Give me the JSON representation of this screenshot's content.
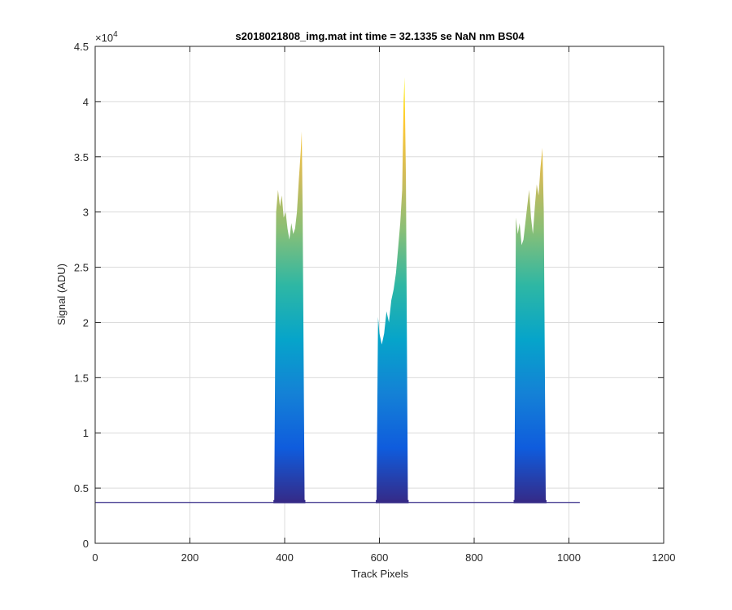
{
  "chart_data": {
    "type": "area",
    "title": "s2018021808_img.mat int time = 32.1335 se  NaN nm BS04",
    "xlabel": "Track Pixels",
    "ylabel": "Signal (ADU)",
    "y_exponent_base": "×10",
    "y_exponent_power": "4",
    "xlim": [
      0,
      1200
    ],
    "ylim": [
      0,
      4.5
    ],
    "y_scale_factor": 10000,
    "x_ticks": [
      0,
      200,
      400,
      600,
      800,
      1000,
      1200
    ],
    "x_tick_labels": [
      "0",
      "200",
      "400",
      "600",
      "800",
      "1000",
      "1200"
    ],
    "y_ticks": [
      0,
      0.5,
      1,
      1.5,
      2,
      2.5,
      3,
      3.5,
      4,
      4.5
    ],
    "y_tick_labels": [
      "0",
      "0.5",
      "1",
      "1.5",
      "2",
      "2.5",
      "3",
      "3.5",
      "4",
      "4.5"
    ],
    "grid": true,
    "colormap": [
      "#352a87",
      "#0f5cdd",
      "#1481d6",
      "#06a4ca",
      "#2eb7a4",
      "#87bf77",
      "#d1bb59",
      "#fec832",
      "#f9fb0e"
    ],
    "baseline": 0.37,
    "x_end": 1023,
    "peaks": [
      {
        "x_start": 378,
        "x_end": 442,
        "top_x": [
          378,
          382,
          386,
          390,
          394,
          398,
          402,
          406,
          410,
          414,
          418,
          422,
          426,
          430,
          434,
          436,
          438,
          442
        ],
        "top_y": [
          0.4,
          3.0,
          3.2,
          3.05,
          3.15,
          2.95,
          3.0,
          2.85,
          2.75,
          2.9,
          2.8,
          2.85,
          3.0,
          3.3,
          3.55,
          3.73,
          3.0,
          0.4
        ]
      },
      {
        "x_start": 594,
        "x_end": 660,
        "top_x": [
          594,
          597,
          600,
          605,
          610,
          615,
          620,
          625,
          630,
          635,
          640,
          644,
          648,
          651,
          653,
          656,
          660
        ],
        "top_y": [
          0.4,
          2.05,
          1.9,
          1.8,
          1.9,
          2.1,
          2.0,
          2.2,
          2.3,
          2.45,
          2.7,
          2.9,
          3.2,
          4.0,
          4.22,
          3.3,
          0.4
        ]
      },
      {
        "x_start": 885,
        "x_end": 951,
        "top_x": [
          885,
          888,
          892,
          896,
          900,
          904,
          908,
          912,
          916,
          920,
          924,
          928,
          932,
          936,
          940,
          944,
          947,
          951
        ],
        "top_y": [
          0.4,
          2.95,
          2.8,
          2.9,
          2.7,
          2.75,
          2.9,
          3.05,
          3.2,
          2.95,
          2.8,
          3.05,
          3.25,
          3.15,
          3.4,
          3.58,
          3.0,
          0.4
        ]
      }
    ]
  }
}
